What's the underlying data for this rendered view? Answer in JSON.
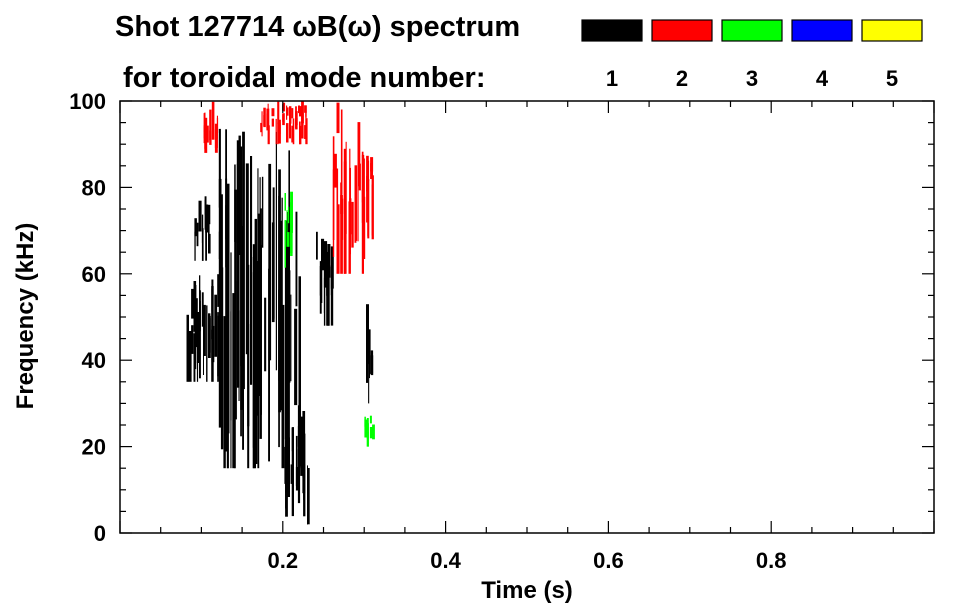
{
  "chart_data": {
    "type": "heatmap",
    "title_line1": "Shot 127714 ωB(ω) spectrum",
    "title_line2": "for toroidal mode number:",
    "xlabel": "Time (s)",
    "ylabel": "Frequency (kHz)",
    "xlim": [
      0.0,
      1.0
    ],
    "ylim": [
      0,
      100
    ],
    "xticks": [
      0.2,
      0.4,
      0.6,
      0.8
    ],
    "xtick_labels": [
      "0.2",
      "0.4",
      "0.6",
      "0.8"
    ],
    "yticks": [
      0,
      20,
      40,
      60,
      80,
      100
    ],
    "ytick_labels": [
      "0",
      "20",
      "40",
      "60",
      "80",
      "100"
    ],
    "legend": {
      "placement": "top-right",
      "entries": [
        {
          "label": "1",
          "color": "#000000"
        },
        {
          "label": "2",
          "color": "#ff0000"
        },
        {
          "label": "3",
          "color": "#00ff00"
        },
        {
          "label": "4",
          "color": "#0000ff"
        },
        {
          "label": "5",
          "color": "#ffff00"
        }
      ]
    },
    "regions": [
      {
        "mode": 1,
        "t": [
          0.08,
          0.12
        ],
        "f": [
          35,
          60
        ]
      },
      {
        "mode": 1,
        "t": [
          0.09,
          0.11
        ],
        "f": [
          63,
          78
        ]
      },
      {
        "mode": 1,
        "t": [
          0.12,
          0.22
        ],
        "f": [
          15,
          95
        ]
      },
      {
        "mode": 1,
        "t": [
          0.2,
          0.23
        ],
        "f": [
          2,
          30
        ]
      },
      {
        "mode": 1,
        "t": [
          0.24,
          0.26
        ],
        "f": [
          48,
          72
        ]
      },
      {
        "mode": 1,
        "t": [
          0.3,
          0.31
        ],
        "f": [
          30,
          55
        ]
      },
      {
        "mode": 2,
        "t": [
          0.1,
          0.12
        ],
        "f": [
          88,
          100
        ]
      },
      {
        "mode": 2,
        "t": [
          0.17,
          0.23
        ],
        "f": [
          90,
          100
        ]
      },
      {
        "mode": 2,
        "t": [
          0.26,
          0.3
        ],
        "f": [
          60,
          100
        ]
      },
      {
        "mode": 2,
        "t": [
          0.3,
          0.31
        ],
        "f": [
          68,
          90
        ]
      },
      {
        "mode": 3,
        "t": [
          0.2,
          0.21
        ],
        "f": [
          60,
          80
        ]
      },
      {
        "mode": 3,
        "t": [
          0.3,
          0.31
        ],
        "f": [
          20,
          28
        ]
      }
    ]
  }
}
